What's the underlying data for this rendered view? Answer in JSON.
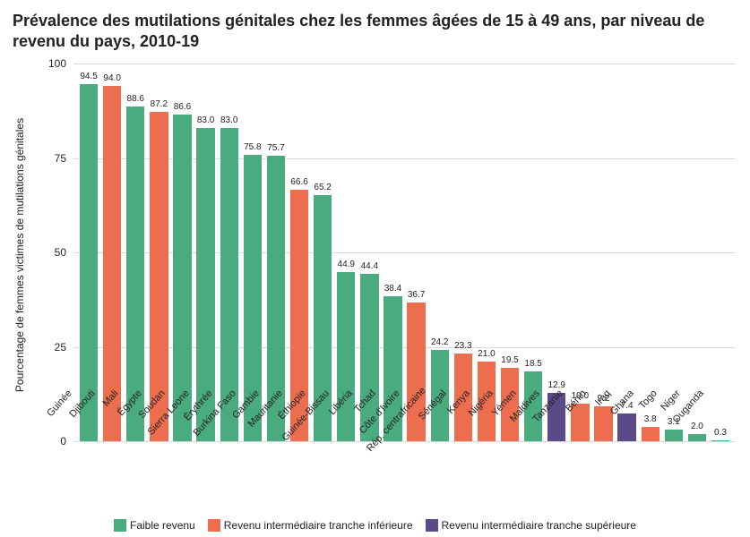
{
  "chart": {
    "type": "bar",
    "title": "Prévalence des mutilations génitales chez les femmes âgées de 15 à 49 ans, par niveau de revenu du pays, 2010-19",
    "title_fontsize": 18,
    "ylabel": "Pourcentage de femmes victimes de mutilations génitales",
    "label_fontsize": 12,
    "ylim": [
      0,
      100
    ],
    "ytick_step": 25,
    "yticks": [
      0,
      25,
      50,
      75,
      100
    ],
    "background_color": "#ffffff",
    "grid_color": "#d9d9d9",
    "value_label_fontsize": 10,
    "x_label_fontsize": 11,
    "x_label_rotation_deg": -48,
    "bar_width_ratio": 0.78,
    "colors": {
      "low": "#4aab7f",
      "lowermid": "#ed6e4e",
      "uppermid": "#5a4a87"
    },
    "legend": [
      {
        "label": "Faible revenu",
        "key": "low"
      },
      {
        "label": "Revenu intermédiaire tranche inférieure",
        "key": "lowermid"
      },
      {
        "label": "Revenu intermédiaire tranche supérieure",
        "key": "uppermid"
      }
    ],
    "data": [
      {
        "country": "Guinée",
        "value": 94.5,
        "group": "low"
      },
      {
        "country": "Djibouti",
        "value": 94.0,
        "group": "lowermid"
      },
      {
        "country": "Mali",
        "value": 88.6,
        "group": "low"
      },
      {
        "country": "Égypte",
        "value": 87.2,
        "group": "lowermid"
      },
      {
        "country": "Soudan",
        "value": 86.6,
        "group": "low"
      },
      {
        "country": "Sierra Leone",
        "value": 83.0,
        "group": "low"
      },
      {
        "country": "Érythrée",
        "value": 83.0,
        "group": "low"
      },
      {
        "country": "Burkina Faso",
        "value": 75.8,
        "group": "low"
      },
      {
        "country": "Gambie",
        "value": 75.7,
        "group": "low"
      },
      {
        "country": "Mauritanie",
        "value": 66.6,
        "group": "lowermid"
      },
      {
        "country": "Éthiopie",
        "value": 65.2,
        "group": "low"
      },
      {
        "country": "Guinée-Bissau",
        "value": 44.9,
        "group": "low"
      },
      {
        "country": "Libéria",
        "value": 44.4,
        "group": "low"
      },
      {
        "country": "Tchad",
        "value": 38.4,
        "group": "low"
      },
      {
        "country": "Côte d'Ivoire",
        "value": 36.7,
        "group": "lowermid"
      },
      {
        "country": "Rép. centrafricaine",
        "value": 24.2,
        "group": "low"
      },
      {
        "country": "Sénégal",
        "value": 23.3,
        "group": "lowermid"
      },
      {
        "country": "Kenya",
        "value": 21.0,
        "group": "lowermid"
      },
      {
        "country": "Nigéria",
        "value": 19.5,
        "group": "lowermid"
      },
      {
        "country": "Yémen",
        "value": 18.5,
        "group": "low"
      },
      {
        "country": "Maldives",
        "value": 12.9,
        "group": "uppermid"
      },
      {
        "country": "Tanzanie",
        "value": 10.0,
        "group": "lowermid"
      },
      {
        "country": "Bénin",
        "value": 9.2,
        "group": "lowermid"
      },
      {
        "country": "Iraq",
        "value": 7.4,
        "group": "uppermid"
      },
      {
        "country": "Ghana",
        "value": 3.8,
        "group": "lowermid"
      },
      {
        "country": "Togo",
        "value": 3.1,
        "group": "low"
      },
      {
        "country": "Niger",
        "value": 2.0,
        "group": "low"
      },
      {
        "country": "Ouganda",
        "value": 0.3,
        "group": "low"
      }
    ]
  }
}
